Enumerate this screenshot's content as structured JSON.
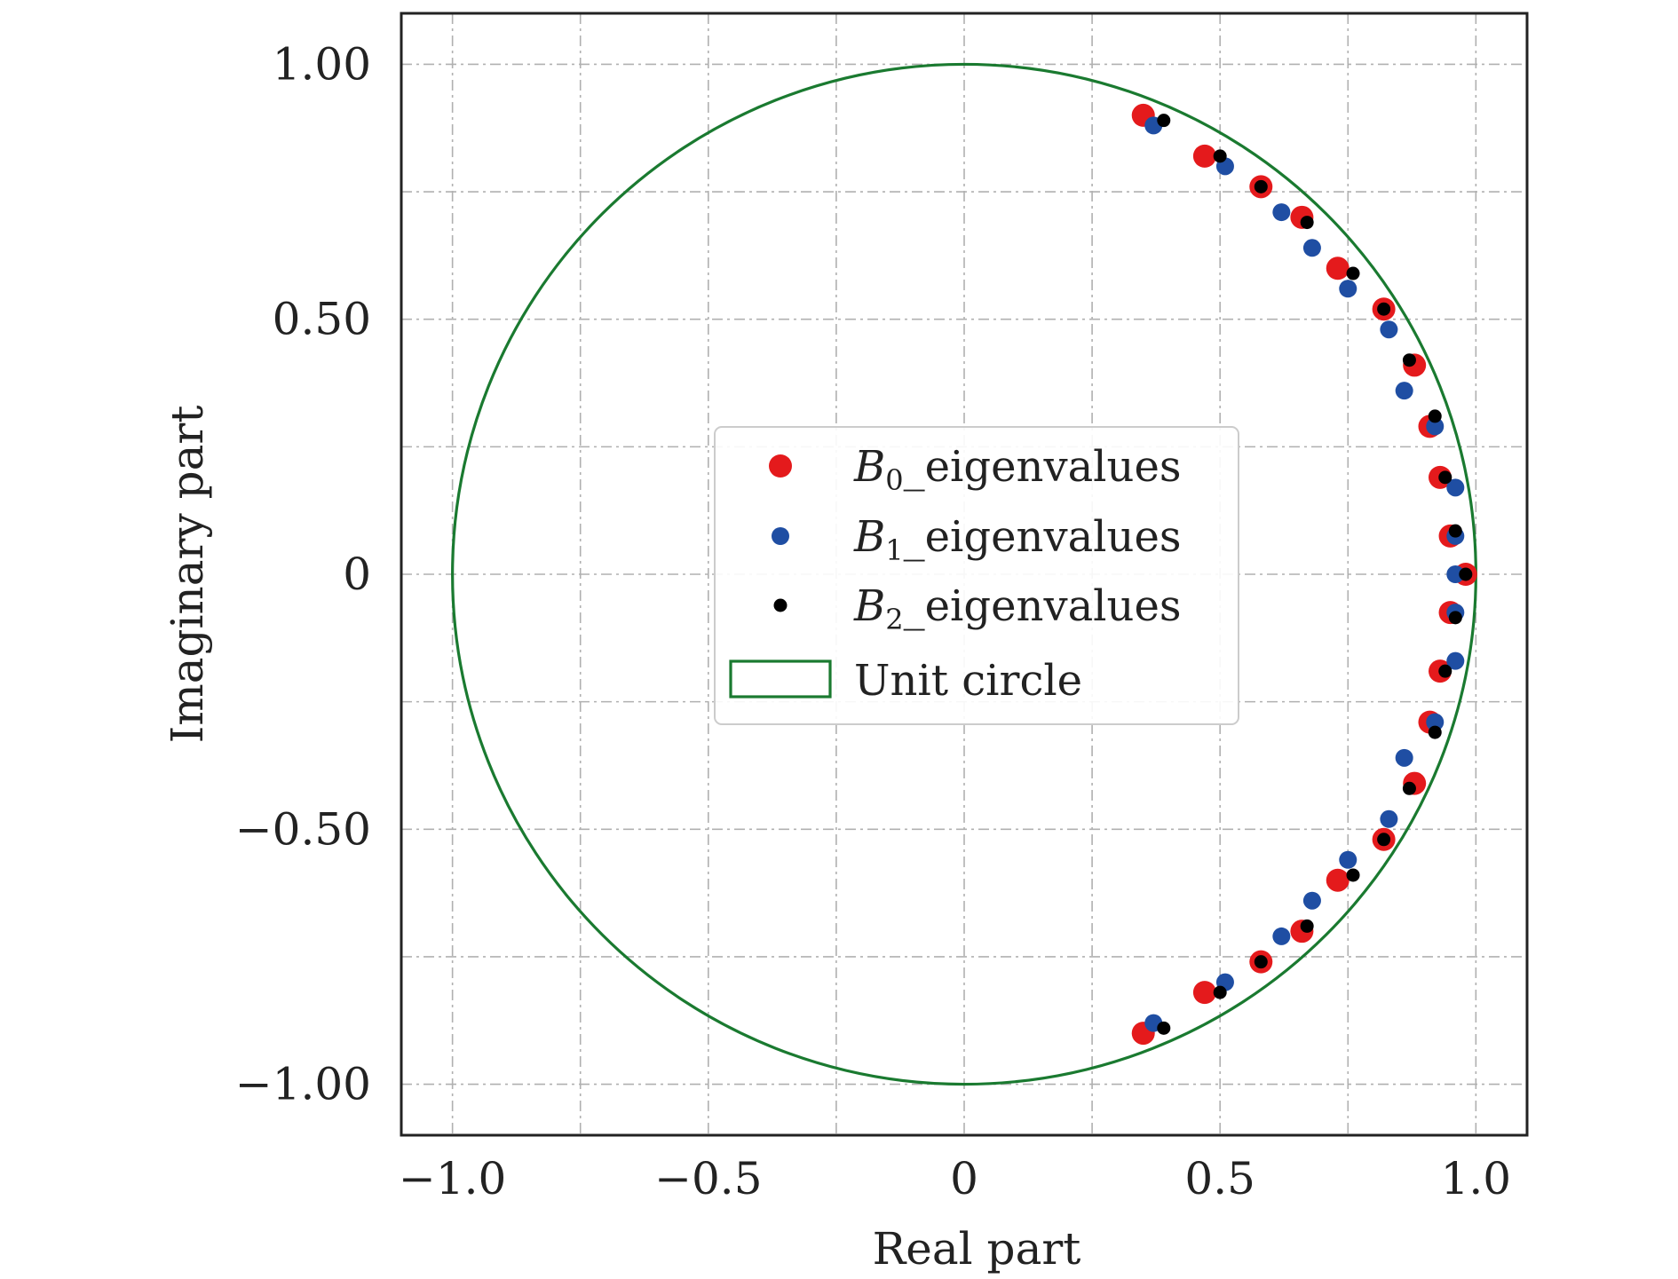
{
  "chart_data": {
    "type": "scatter",
    "title": "",
    "xlabel": "Real part",
    "ylabel": "Imaginary part",
    "xlim": [
      -1.1,
      1.1
    ],
    "ylim": [
      -1.1,
      1.1
    ],
    "xticks": [
      {
        "value": -1.0,
        "label": "−1.0"
      },
      {
        "value": -0.5,
        "label": "−0.5"
      },
      {
        "value": 0,
        "label": "0"
      },
      {
        "value": 0.5,
        "label": "0.5"
      },
      {
        "value": 1.0,
        "label": "1.0"
      }
    ],
    "yticks": [
      {
        "value": 1.0,
        "label": "1.00"
      },
      {
        "value": 0.5,
        "label": "0.50"
      },
      {
        "value": 0,
        "label": "0"
      },
      {
        "value": -0.5,
        "label": "−0.50"
      },
      {
        "value": -1.0,
        "label": "−1.00"
      }
    ],
    "grid": true,
    "grid_values": [
      -1.0,
      -0.75,
      -0.5,
      -0.25,
      0,
      0.25,
      0.5,
      0.75,
      1.0
    ],
    "legend_position": "center",
    "legend": [
      {
        "base": "B",
        "sub": "0",
        "suffix": "_eigenvalues",
        "color": "#e41a1c",
        "marker": "large-dot"
      },
      {
        "base": "B",
        "sub": "1",
        "suffix": "_eigenvalues",
        "color": "#1f4ea3",
        "marker": "medium-dot"
      },
      {
        "base": "B",
        "sub": "2",
        "suffix": "_eigenvalues",
        "color": "#000000",
        "marker": "small-dot"
      },
      {
        "label": "Unit circle",
        "color": "#1a7a30",
        "marker": "rect-outline"
      }
    ],
    "series": [
      {
        "name": "B0_eigenvalues",
        "color": "#e41a1c",
        "points": [
          [
            0.35,
            0.9
          ],
          [
            0.47,
            0.82
          ],
          [
            0.58,
            0.76
          ],
          [
            0.66,
            0.7
          ],
          [
            0.73,
            0.6
          ],
          [
            0.82,
            0.52
          ],
          [
            0.88,
            0.41
          ],
          [
            0.91,
            0.29
          ],
          [
            0.93,
            0.19
          ],
          [
            0.95,
            0.075
          ],
          [
            0.98,
            0.0
          ],
          [
            0.95,
            -0.075
          ],
          [
            0.93,
            -0.19
          ],
          [
            0.91,
            -0.29
          ],
          [
            0.88,
            -0.41
          ],
          [
            0.82,
            -0.52
          ],
          [
            0.73,
            -0.6
          ],
          [
            0.66,
            -0.7
          ],
          [
            0.58,
            -0.76
          ],
          [
            0.47,
            -0.82
          ],
          [
            0.35,
            -0.9
          ]
        ]
      },
      {
        "name": "B1_eigenvalues",
        "color": "#1f4ea3",
        "points": [
          [
            0.37,
            0.88
          ],
          [
            0.51,
            0.8
          ],
          [
            0.62,
            0.71
          ],
          [
            0.68,
            0.64
          ],
          [
            0.75,
            0.56
          ],
          [
            0.83,
            0.48
          ],
          [
            0.86,
            0.36
          ],
          [
            0.92,
            0.29
          ],
          [
            0.96,
            0.17
          ],
          [
            0.96,
            0.075
          ],
          [
            0.96,
            0.0
          ],
          [
            0.96,
            -0.075
          ],
          [
            0.96,
            -0.17
          ],
          [
            0.92,
            -0.29
          ],
          [
            0.86,
            -0.36
          ],
          [
            0.83,
            -0.48
          ],
          [
            0.75,
            -0.56
          ],
          [
            0.68,
            -0.64
          ],
          [
            0.62,
            -0.71
          ],
          [
            0.51,
            -0.8
          ],
          [
            0.37,
            -0.88
          ]
        ]
      },
      {
        "name": "B2_eigenvalues",
        "color": "#000000",
        "points": [
          [
            0.39,
            0.89
          ],
          [
            0.5,
            0.82
          ],
          [
            0.58,
            0.76
          ],
          [
            0.67,
            0.69
          ],
          [
            0.76,
            0.59
          ],
          [
            0.82,
            0.52
          ],
          [
            0.87,
            0.42
          ],
          [
            0.92,
            0.31
          ],
          [
            0.94,
            0.19
          ],
          [
            0.96,
            0.085
          ],
          [
            0.98,
            0.0
          ],
          [
            0.96,
            -0.085
          ],
          [
            0.94,
            -0.19
          ],
          [
            0.92,
            -0.31
          ],
          [
            0.87,
            -0.42
          ],
          [
            0.82,
            -0.52
          ],
          [
            0.76,
            -0.59
          ],
          [
            0.67,
            -0.69
          ],
          [
            0.58,
            -0.76
          ],
          [
            0.5,
            -0.82
          ],
          [
            0.39,
            -0.89
          ]
        ]
      }
    ],
    "circle": {
      "name": "Unit circle",
      "radius": 1.0,
      "color": "#1a7a30"
    }
  }
}
